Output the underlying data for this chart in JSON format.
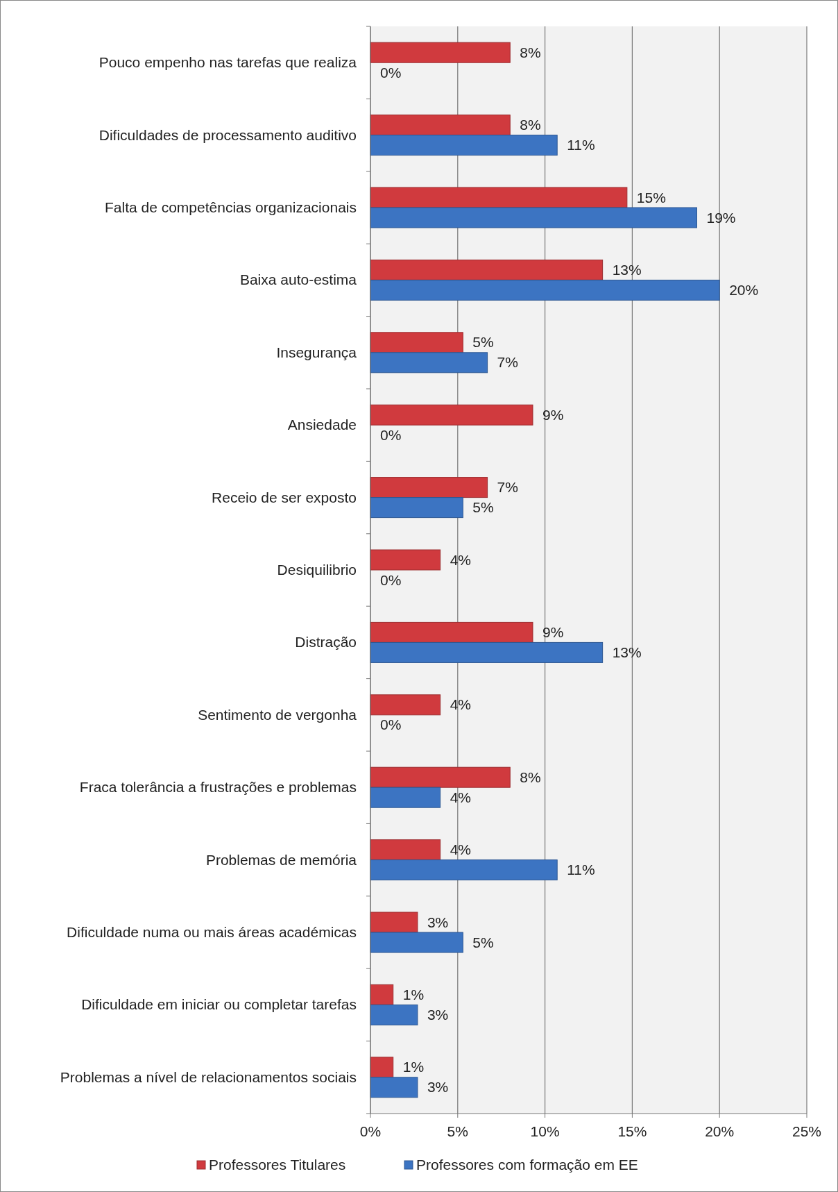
{
  "chart_data": {
    "type": "bar",
    "orientation": "horizontal",
    "categories": [
      "Pouco empenho nas tarefas que realiza",
      "Dificuldades de processamento auditivo",
      "Falta de competências organizacionais",
      "Baixa auto-estima",
      "Insegurança",
      "Ansiedade",
      "Receio de ser exposto",
      "Desiquilibrio",
      "Distração",
      "Sentimento de vergonha",
      "Fraca tolerância a frustrações e problemas",
      "Problemas de memória",
      "Dificuldade numa ou mais áreas académicas",
      "Dificuldade em iniciar ou completar tarefas",
      "Problemas a nível de relacionamentos sociais"
    ],
    "series": [
      {
        "name": "Professores Titulares",
        "color": "#d03a3e",
        "values": [
          8,
          8,
          14.7,
          13.3,
          5.3,
          9.3,
          6.7,
          4,
          9.3,
          4,
          8,
          4,
          2.7,
          1.3,
          1.3
        ],
        "value_labels": [
          "8%",
          "8%",
          "15%",
          "13%",
          "5%",
          "9%",
          "7%",
          "4%",
          "9%",
          "4%",
          "8%",
          "4%",
          "3%",
          "1%",
          "1%"
        ]
      },
      {
        "name": "Professores com formação em EE",
        "color": "#3c74c2",
        "values": [
          0,
          10.7,
          18.7,
          20,
          6.7,
          0,
          5.3,
          0,
          13.3,
          0,
          4,
          10.7,
          5.3,
          2.7,
          2.7
        ],
        "value_labels": [
          "0%",
          "11%",
          "19%",
          "20%",
          "7%",
          "0%",
          "5%",
          "0%",
          "13%",
          "0%",
          "4%",
          "11%",
          "5%",
          "3%",
          "3%"
        ]
      }
    ],
    "xlim": [
      0,
      25
    ],
    "xticks": [
      {
        "value": 0,
        "label": "0%"
      },
      {
        "value": 5,
        "label": "5%"
      },
      {
        "value": 10,
        "label": "10%"
      },
      {
        "value": 15,
        "label": "15%"
      },
      {
        "value": 20,
        "label": "20%"
      },
      {
        "value": 25,
        "label": "25%"
      }
    ],
    "grid": "x",
    "legend": "bottom"
  }
}
